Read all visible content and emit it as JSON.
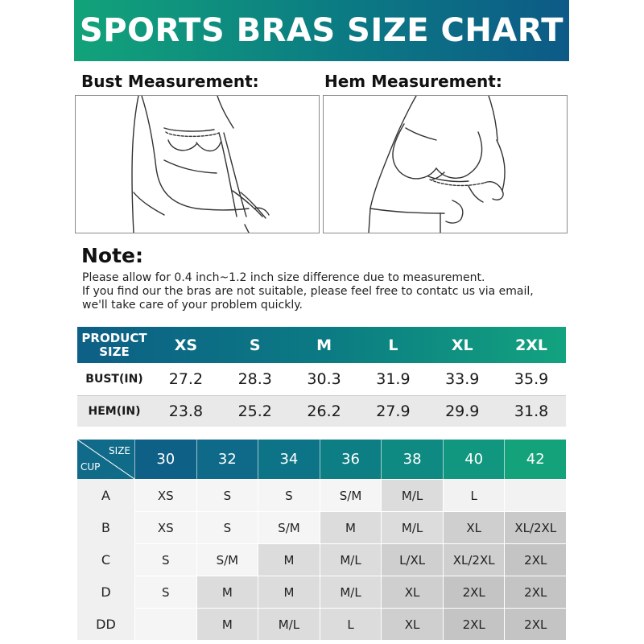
{
  "header": {
    "title": "SPORTS BRAS SIZE CHART"
  },
  "measurements": {
    "bust_label": "Bust Measurement:",
    "hem_label": "Hem Measurement:"
  },
  "note": {
    "title": "Note:",
    "lines": [
      "Please allow for 0.4 inch~1.2 inch size difference due to measurement.",
      "If you find our the bras are not suitable, please feel free to contatc us via email,",
      "we'll take care of your problem quickly."
    ]
  },
  "size_table": {
    "header_label_line1": "PRODUCT",
    "header_label_line2": "SIZE",
    "sizes": [
      "XS",
      "S",
      "M",
      "L",
      "XL",
      "2XL"
    ],
    "rows": [
      {
        "label": "BUST(IN)",
        "values": [
          "27.2",
          "28.3",
          "30.3",
          "31.9",
          "33.9",
          "35.9"
        ]
      },
      {
        "label": "HEM(IN)",
        "values": [
          "23.8",
          "25.2",
          "26.2",
          "27.9",
          "29.9",
          "31.8"
        ]
      }
    ]
  },
  "cup_table": {
    "corner_size": "SIZE",
    "corner_cup": "CUP",
    "header_colors": [
      "#0f6086",
      "#0e6a88",
      "#0c7486",
      "#0c7e84",
      "#0e8a82",
      "#11967f",
      "#14a27b"
    ],
    "band_sizes": [
      "30",
      "32",
      "34",
      "36",
      "38",
      "40",
      "42"
    ],
    "rows": [
      {
        "cup": "A",
        "values": [
          "XS",
          "S",
          "S",
          "S/M",
          "M/L",
          "L",
          ""
        ]
      },
      {
        "cup": "B",
        "values": [
          "XS",
          "S",
          "S/M",
          "M",
          "M/L",
          "XL",
          "XL/2XL"
        ]
      },
      {
        "cup": "C",
        "values": [
          "S",
          "S/M",
          "M",
          "M/L",
          "L/XL",
          "XL/2XL",
          "2XL"
        ]
      },
      {
        "cup": "D",
        "values": [
          "S",
          "M",
          "M",
          "M/L",
          "XL",
          "2XL",
          "2XL"
        ]
      },
      {
        "cup": "DD",
        "values": [
          "",
          "M",
          "M/L",
          "L",
          "XL",
          "2XL",
          "2XL"
        ]
      }
    ],
    "shades": [
      [
        "#f5f5f5",
        "#f5f5f5",
        "#f5f5f5",
        "#f5f5f5",
        "#dcdcdc",
        "#f2f2f2",
        "#f2f2f2"
      ],
      [
        "#f5f5f5",
        "#f5f5f5",
        "#f5f5f5",
        "#dcdcdc",
        "#dcdcdc",
        "#cfcfcf",
        "#c9c9c9"
      ],
      [
        "#f5f5f5",
        "#f5f5f5",
        "#dcdcdc",
        "#dcdcdc",
        "#cfcfcf",
        "#cfcfcf",
        "#c4c4c4"
      ],
      [
        "#f5f5f5",
        "#dcdcdc",
        "#dcdcdc",
        "#dcdcdc",
        "#cfcfcf",
        "#c4c4c4",
        "#c4c4c4"
      ],
      [
        "#f5f5f5",
        "#dcdcdc",
        "#dcdcdc",
        "#dcdcdc",
        "#cfcfcf",
        "#c4c4c4",
        "#c4c4c4"
      ]
    ]
  }
}
